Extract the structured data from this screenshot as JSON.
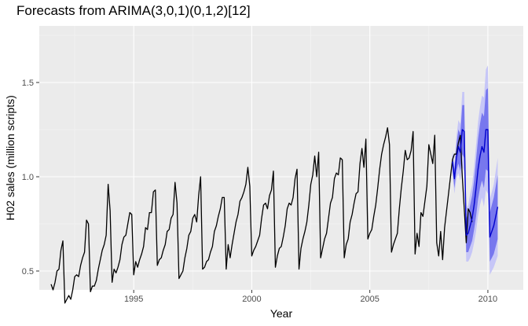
{
  "chart_data": {
    "type": "line",
    "title": "Forecasts from ARIMA(3,0,1)(0,1,2)[12]",
    "xlabel": "Year",
    "ylabel": "H02 sales (million scripts)",
    "xlim": [
      1991.0,
      2011.5
    ],
    "ylim": [
      0.4,
      1.8
    ],
    "x_ticks": [
      1995,
      2000,
      2005,
      2010
    ],
    "y_ticks": [
      0.5,
      1.0,
      1.5
    ],
    "x_tick_labels": [
      "1995",
      "2000",
      "2005",
      "2010"
    ],
    "y_tick_labels": [
      "0.5",
      "1.0",
      "1.5"
    ],
    "grid": true,
    "legend": "none",
    "observed": {
      "start": 1991.5,
      "frequency": 12,
      "values": [
        0.43,
        0.4,
        0.44,
        0.5,
        0.51,
        0.61,
        0.66,
        0.33,
        0.35,
        0.37,
        0.35,
        0.4,
        0.47,
        0.48,
        0.47,
        0.53,
        0.57,
        0.6,
        0.77,
        0.75,
        0.39,
        0.42,
        0.42,
        0.45,
        0.51,
        0.56,
        0.61,
        0.64,
        0.69,
        0.96,
        0.82,
        0.44,
        0.51,
        0.49,
        0.52,
        0.56,
        0.64,
        0.68,
        0.69,
        0.75,
        0.81,
        0.8,
        0.48,
        0.55,
        0.52,
        0.56,
        0.59,
        0.63,
        0.73,
        0.72,
        0.81,
        0.81,
        0.92,
        0.93,
        0.53,
        0.56,
        0.57,
        0.61,
        0.64,
        0.71,
        0.72,
        0.78,
        0.8,
        0.97,
        0.86,
        0.46,
        0.48,
        0.5,
        0.57,
        0.62,
        0.69,
        0.71,
        0.78,
        0.8,
        0.76,
        0.9,
        1.0,
        0.51,
        0.52,
        0.55,
        0.56,
        0.6,
        0.63,
        0.71,
        0.74,
        0.79,
        0.83,
        0.89,
        0.89,
        0.51,
        0.64,
        0.57,
        0.64,
        0.7,
        0.76,
        0.8,
        0.87,
        0.89,
        0.92,
        0.96,
        1.05,
        0.95,
        0.58,
        0.61,
        0.63,
        0.66,
        0.69,
        0.78,
        0.85,
        0.86,
        0.83,
        0.9,
        0.93,
        1.03,
        0.52,
        0.58,
        0.62,
        0.63,
        0.68,
        0.74,
        0.83,
        0.86,
        0.85,
        0.89,
        0.99,
        1.04,
        0.51,
        0.62,
        0.67,
        0.71,
        0.76,
        0.85,
        0.96,
        1.01,
        1.11,
        1.0,
        1.13,
        0.57,
        0.62,
        0.67,
        0.7,
        0.78,
        0.86,
        0.89,
        0.99,
        1.02,
        1.01,
        1.1,
        1.09,
        0.57,
        0.64,
        0.67,
        0.76,
        0.8,
        0.86,
        0.91,
        0.92,
        1.07,
        1.15,
        1.05,
        1.2,
        0.67,
        0.7,
        0.72,
        0.79,
        0.85,
        0.94,
        1.04,
        1.12,
        1.17,
        1.21,
        1.26,
        1.17,
        0.6,
        0.64,
        0.67,
        0.7,
        0.83,
        0.94,
        1.03,
        1.14,
        1.09,
        1.1,
        1.14,
        1.24,
        0.59,
        0.7,
        0.63,
        0.81,
        0.79,
        0.87,
        0.95,
        1.17,
        1.12,
        1.07,
        1.22,
        0.65,
        0.58,
        0.71,
        0.56,
        0.73,
        0.82,
        0.91,
        1.0,
        1.09,
        1.12,
        1.12,
        1.18,
        1.22,
        1.0,
        0.83,
        0.65,
        0.83,
        0.81,
        0.76
      ]
    },
    "forecast": {
      "start": 2008.5,
      "frequency": 12,
      "mean": [
        1.08,
        0.99,
        1.1,
        1.16,
        1.13,
        1.25,
        1.24,
        0.69,
        0.7,
        0.74,
        0.78,
        0.85,
        0.94,
        1.04,
        1.11,
        1.16,
        1.13,
        1.25,
        1.25,
        0.68,
        0.71,
        0.74,
        0.79,
        0.84
      ],
      "lo80": [
        1.04,
        0.94,
        1.03,
        1.07,
        1.03,
        1.12,
        1.1,
        0.6,
        0.6,
        0.63,
        0.66,
        0.72,
        0.79,
        0.88,
        0.94,
        0.98,
        0.94,
        1.04,
        1.03,
        0.55,
        0.57,
        0.59,
        0.63,
        0.67
      ],
      "hi80": [
        1.12,
        1.04,
        1.17,
        1.25,
        1.23,
        1.38,
        1.38,
        0.78,
        0.8,
        0.85,
        0.9,
        0.98,
        1.09,
        1.2,
        1.28,
        1.34,
        1.32,
        1.46,
        1.47,
        0.81,
        0.85,
        0.89,
        0.95,
        1.01
      ],
      "lo95": [
        1.02,
        0.91,
        0.99,
        1.02,
        0.98,
        1.05,
        1.03,
        0.55,
        0.55,
        0.57,
        0.6,
        0.65,
        0.71,
        0.79,
        0.85,
        0.89,
        0.84,
        0.93,
        0.91,
        0.48,
        0.5,
        0.52,
        0.55,
        0.58
      ],
      "hi95": [
        1.14,
        1.07,
        1.21,
        1.3,
        1.28,
        1.45,
        1.45,
        0.83,
        0.85,
        0.91,
        0.96,
        1.05,
        1.17,
        1.29,
        1.37,
        1.43,
        1.42,
        1.57,
        1.59,
        0.88,
        0.92,
        0.96,
        1.03,
        1.1
      ]
    },
    "colors": {
      "panel": "#ebebeb",
      "grid_major": "#ffffff",
      "grid_minor": "#f5f5f5",
      "observed_line": "#000000",
      "forecast_line": "#0000cc",
      "band80": "#7777ee",
      "band95": "#c6c6f7",
      "tick": "#333333"
    }
  }
}
